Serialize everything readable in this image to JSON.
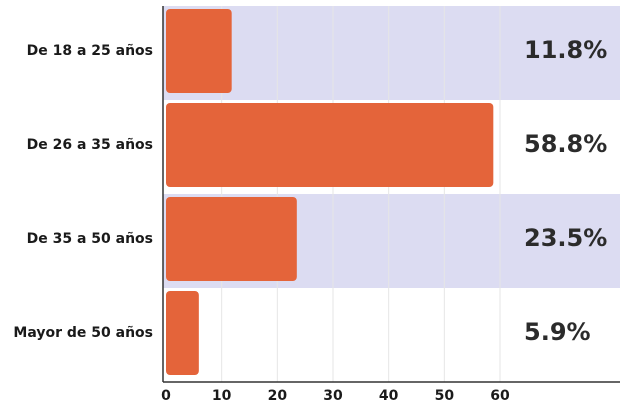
{
  "chart_data": {
    "type": "bar",
    "orientation": "horizontal",
    "categories": [
      "De 18 a 25 años",
      "De 26 a 35 años",
      "De 35 a 50 años",
      "Mayor de 50 años"
    ],
    "values": [
      11.8,
      58.8,
      23.5,
      5.9
    ],
    "value_labels": [
      "11.8%",
      "58.8%",
      "23.5%",
      "5.9%"
    ],
    "x_ticks": [
      "0",
      "10",
      "20",
      "30",
      "40",
      "50",
      "60"
    ],
    "xlim": [
      0,
      60
    ],
    "xlabel": "",
    "ylabel": "",
    "title": "",
    "grid": true,
    "legend": "none",
    "colors": {
      "bar": "#E4643A",
      "band": "#DCDCF2",
      "grid": "#E6E6E6",
      "axis": "#333333"
    }
  }
}
